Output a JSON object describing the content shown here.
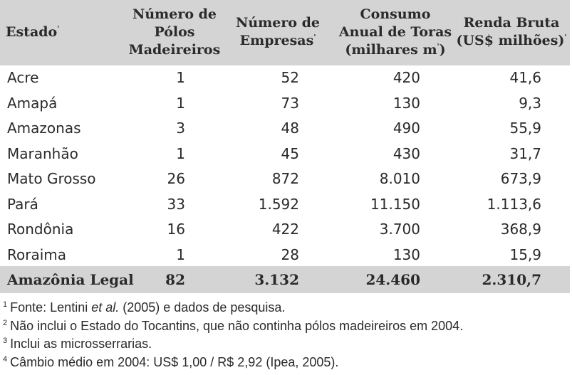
{
  "table": {
    "headers": {
      "estado": "Estado",
      "polos": [
        "Número de",
        "Pólos",
        "Madeireiros"
      ],
      "empresas": [
        "Número de",
        "Empresas"
      ],
      "consumo": [
        "Consumo",
        "Anual de Toras",
        "(milhares m",
        ")"
      ],
      "renda": [
        "Renda Bruta",
        "(US$ milhões)"
      ]
    },
    "rows": [
      {
        "estado": "Acre",
        "polos": "1",
        "empresas": "52",
        "consumo": "420",
        "renda": "41,6"
      },
      {
        "estado": "Amapá",
        "polos": "1",
        "empresas": "73",
        "consumo": "130",
        "renda": "9,3"
      },
      {
        "estado": "Amazonas",
        "polos": "3",
        "empresas": "48",
        "consumo": "490",
        "renda": "55,9"
      },
      {
        "estado": "Maranhão",
        "polos": "1",
        "empresas": "45",
        "consumo": "430",
        "renda": "31,7"
      },
      {
        "estado": "Mato Grosso",
        "polos": "26",
        "empresas": "872",
        "consumo": "8.010",
        "renda": "673,9"
      },
      {
        "estado": "Pará",
        "polos": "33",
        "empresas": "1.592",
        "consumo": "11.150",
        "renda": "1.113,6"
      },
      {
        "estado": "Rondônia",
        "polos": "16",
        "empresas": "422",
        "consumo": "3.700",
        "renda": "368,9"
      },
      {
        "estado": "Roraima",
        "polos": "1",
        "empresas": "28",
        "consumo": "130",
        "renda": "15,9"
      }
    ],
    "total": {
      "estado": "Amazônia Legal",
      "polos": "82",
      "empresas": "3.132",
      "consumo": "24.460",
      "renda": "2.310,7"
    }
  },
  "notes": {
    "n1": {
      "num": "1",
      "pre": "Fonte: Lentini ",
      "em": "et al.",
      "post": " (2005) e dados de pesquisa."
    },
    "n2": {
      "num": "2",
      "text": "Não inclui o Estado do Tocantins, que não continha pólos madeireiros em 2004."
    },
    "n3": {
      "num": "3",
      "text": "Inclui as microsserrarias."
    },
    "n4": {
      "num": "4",
      "text": "Câmbio médio em 2004: US$ 1,00 / R$ 2,92 (Ipea, 2005)."
    }
  },
  "colors": {
    "header_bg": "#d4d4d4",
    "text": "#2a2a2a"
  }
}
